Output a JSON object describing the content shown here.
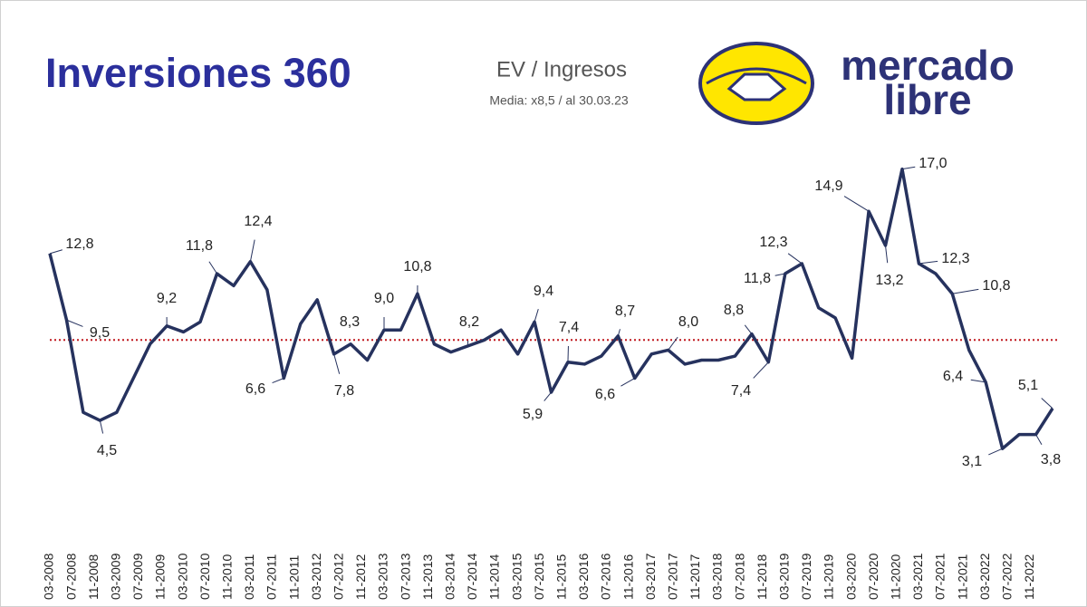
{
  "header": {
    "title": "Inversiones 360"
  },
  "logo": {
    "lines": [
      "mercado",
      "libre"
    ]
  },
  "chart_data": {
    "type": "line",
    "title": "EV / Ingresos",
    "subtitle": "Media: x8,5 / al 30.03.23",
    "xlim": [
      0,
      180
    ],
    "xticks": [
      {
        "value": 0,
        "label": "03-2008"
      },
      {
        "value": 4,
        "label": "07-2008"
      },
      {
        "value": 8,
        "label": "11-2008"
      },
      {
        "value": 12,
        "label": "03-2009"
      },
      {
        "value": 16,
        "label": "07-2009"
      },
      {
        "value": 20,
        "label": "11-2009"
      },
      {
        "value": 24,
        "label": "03-2010"
      },
      {
        "value": 28,
        "label": "07-2010"
      },
      {
        "value": 32,
        "label": "11-2010"
      },
      {
        "value": 36,
        "label": "03-2011"
      },
      {
        "value": 40,
        "label": "07-2011"
      },
      {
        "value": 44,
        "label": "11-2011"
      },
      {
        "value": 48,
        "label": "03-2012"
      },
      {
        "value": 52,
        "label": "07-2012"
      },
      {
        "value": 56,
        "label": "11-2012"
      },
      {
        "value": 60,
        "label": "03-2013"
      },
      {
        "value": 64,
        "label": "07-2013"
      },
      {
        "value": 68,
        "label": "11-2013"
      },
      {
        "value": 72,
        "label": "03-2014"
      },
      {
        "value": 76,
        "label": "07-2014"
      },
      {
        "value": 80,
        "label": "11-2014"
      },
      {
        "value": 84,
        "label": "03-2015"
      },
      {
        "value": 88,
        "label": "07-2015"
      },
      {
        "value": 92,
        "label": "11-2015"
      },
      {
        "value": 96,
        "label": "03-2016"
      },
      {
        "value": 100,
        "label": "07-2016"
      },
      {
        "value": 104,
        "label": "11-2016"
      },
      {
        "value": 108,
        "label": "03-2017"
      },
      {
        "value": 112,
        "label": "07-2017"
      },
      {
        "value": 116,
        "label": "11-2017"
      },
      {
        "value": 120,
        "label": "03-2018"
      },
      {
        "value": 124,
        "label": "07-2018"
      },
      {
        "value": 128,
        "label": "11-2018"
      },
      {
        "value": 132,
        "label": "03-2019"
      },
      {
        "value": 136,
        "label": "07-2019"
      },
      {
        "value": 140,
        "label": "11-2019"
      },
      {
        "value": 144,
        "label": "03-2020"
      },
      {
        "value": 148,
        "label": "07-2020"
      },
      {
        "value": 152,
        "label": "11-2020"
      },
      {
        "value": 156,
        "label": "03-2021"
      },
      {
        "value": 160,
        "label": "07-2021"
      },
      {
        "value": 164,
        "label": "11-2021"
      },
      {
        "value": 168,
        "label": "03-2022"
      },
      {
        "value": 172,
        "label": "07-2022"
      },
      {
        "value": 176,
        "label": "11-2022"
      }
    ],
    "x": [
      0,
      3,
      6,
      9,
      12,
      15,
      18,
      21,
      24,
      27,
      30,
      33,
      36,
      39,
      42,
      45,
      48,
      51,
      54,
      57,
      60,
      63,
      66,
      69,
      72,
      75,
      78,
      81,
      84,
      87,
      90,
      93,
      96,
      99,
      102,
      105,
      108,
      111,
      114,
      117,
      120,
      123,
      126,
      129,
      132,
      135,
      138,
      141,
      144,
      147,
      150,
      153,
      156,
      159,
      162,
      165,
      168,
      171,
      174,
      177,
      180
    ],
    "values": [
      12.8,
      9.5,
      4.9,
      4.5,
      4.9,
      6.6,
      8.3,
      9.2,
      8.9,
      9.4,
      11.8,
      11.2,
      12.4,
      11.0,
      6.6,
      9.3,
      10.5,
      7.8,
      8.3,
      7.5,
      9.0,
      9.0,
      10.8,
      8.3,
      7.9,
      8.2,
      8.5,
      9.0,
      7.8,
      9.4,
      5.9,
      7.4,
      7.3,
      7.7,
      8.7,
      6.6,
      7.8,
      8.0,
      7.3,
      7.5,
      7.5,
      7.7,
      8.8,
      7.4,
      11.8,
      12.3,
      10.1,
      9.6,
      7.6,
      14.9,
      13.2,
      17.0,
      12.3,
      11.8,
      10.8,
      8.0,
      6.4,
      3.1,
      3.8,
      3.8,
      5.1
    ],
    "value_labels": [
      "12,8",
      "9,5",
      null,
      "4,5",
      null,
      null,
      null,
      "9,2",
      null,
      null,
      "11,8",
      null,
      "12,4",
      null,
      "6,6",
      null,
      null,
      "7,8",
      "8,3",
      null,
      "9,0",
      null,
      "10,8",
      null,
      null,
      "8,2",
      null,
      null,
      null,
      "9,4",
      "5,9",
      "7,4",
      null,
      null,
      "8,7",
      "6,6",
      null,
      "8,0",
      null,
      null,
      null,
      null,
      "8,8",
      "7,4",
      "11,8",
      "12,3",
      null,
      null,
      null,
      "14,9",
      "13,2",
      "17,0",
      "12,3",
      null,
      "10,8",
      null,
      "6,4",
      "3,1",
      null,
      "3,8",
      "5,1"
    ],
    "color": "#26325e",
    "reference_line": 8.5,
    "reference_color": "#c0191f",
    "ylim": [
      0,
      18
    ]
  }
}
